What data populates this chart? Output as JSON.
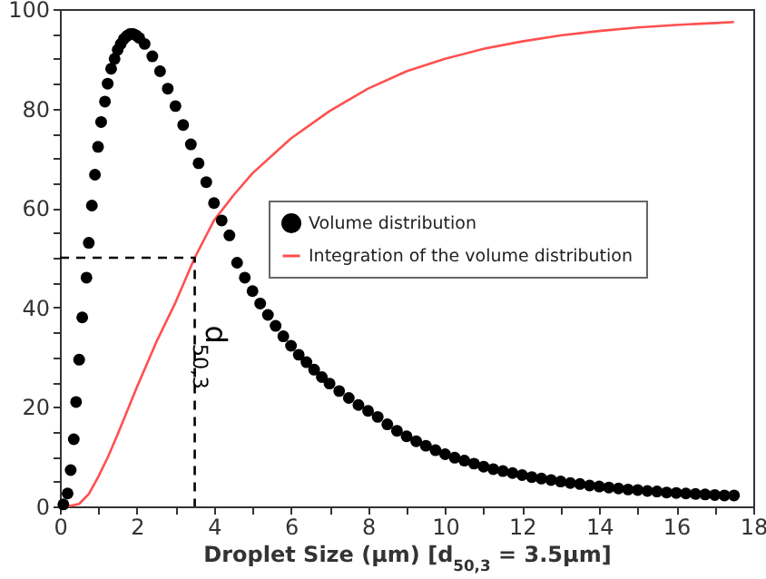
{
  "chart_data": {
    "type": "scatter",
    "xlabel": "Droplet Size (µm) [d$_{50,3}$ = 3.5µm]",
    "xlim": [
      0,
      18
    ],
    "ylim": [
      0,
      100
    ],
    "xticks": [
      0,
      {
        "value": 1,
        "label": null
      },
      2,
      {
        "value": 3,
        "label": null
      },
      4,
      {
        "value": 5,
        "label": null
      },
      6,
      {
        "value": 7,
        "label": null
      },
      8,
      {
        "value": 9,
        "label": null
      },
      10,
      {
        "value": 11,
        "label": null
      },
      12,
      {
        "value": 13,
        "label": null
      },
      14,
      {
        "value": 15,
        "label": null
      },
      16,
      {
        "value": 17,
        "label": null
      },
      18
    ],
    "yticks": [
      0,
      {
        "value": 5,
        "label": null
      },
      {
        "value": 10,
        "label": null
      },
      {
        "value": 15,
        "label": null
      },
      20,
      {
        "value": 25,
        "label": null
      },
      {
        "value": 30,
        "label": null
      },
      {
        "value": 35,
        "label": null
      },
      40,
      {
        "value": 45,
        "label": null
      },
      {
        "value": 50,
        "label": null
      },
      {
        "value": 55,
        "label": null
      },
      60,
      {
        "value": 65,
        "label": null
      },
      {
        "value": 70,
        "label": null
      },
      {
        "value": 75,
        "label": null
      },
      80,
      {
        "value": 85,
        "label": null
      },
      {
        "value": 90,
        "label": null
      },
      {
        "value": 95,
        "label": null
      },
      100
    ],
    "legend": "right",
    "grid": false,
    "series": [
      {
        "name": "Volume distribution",
        "marker": "circle",
        "color": "#000000",
        "x": [
          0.09,
          0.2,
          0.28,
          0.36,
          0.42,
          0.5,
          0.58,
          0.69,
          0.75,
          0.83,
          0.91,
          0.99,
          1.07,
          1.17,
          1.24,
          1.33,
          1.42,
          1.5,
          1.58,
          1.66,
          1.74,
          1.82,
          1.9,
          1.98,
          2.06,
          2.2,
          2.4,
          2.6,
          2.8,
          3.0,
          3.2,
          3.4,
          3.6,
          3.8,
          4.0,
          4.2,
          4.4,
          4.6,
          4.8,
          5.0,
          5.2,
          5.4,
          5.6,
          5.8,
          6.0,
          6.2,
          6.4,
          6.6,
          6.8,
          7.0,
          7.25,
          7.5,
          7.75,
          8.0,
          8.25,
          8.5,
          8.75,
          9.0,
          9.25,
          9.5,
          9.75,
          10.0,
          10.25,
          10.5,
          10.75,
          11.0,
          11.25,
          11.5,
          11.75,
          12.0,
          12.25,
          12.5,
          12.75,
          13.0,
          13.25,
          13.5,
          13.75,
          14.0,
          14.25,
          14.5,
          14.75,
          15.0,
          15.25,
          15.5,
          15.75,
          16.0,
          16.25,
          16.5,
          16.75,
          17.0,
          17.25,
          17.5
        ],
        "values": [
          0.4,
          2.6,
          7.3,
          13.5,
          21,
          29.5,
          38,
          46,
          53,
          60.5,
          66.7,
          72.3,
          77.3,
          81.4,
          85,
          88,
          90,
          91.8,
          93,
          94,
          94.6,
          95,
          95,
          94.7,
          94.2,
          93,
          90.5,
          87.5,
          84,
          80.5,
          76.7,
          72.8,
          69,
          65.2,
          61,
          57.5,
          54.5,
          49,
          46,
          43.3,
          40.8,
          38.5,
          36.3,
          34.2,
          32.3,
          30.5,
          29,
          27.5,
          26,
          24.7,
          23.2,
          21.8,
          20.4,
          19.2,
          18,
          16.5,
          15.2,
          14.1,
          13.1,
          12.2,
          11.3,
          10.5,
          9.8,
          9.2,
          8.6,
          8,
          7.5,
          7.1,
          6.7,
          6.3,
          5.9,
          5.6,
          5.3,
          5,
          4.7,
          4.5,
          4.2,
          4,
          3.8,
          3.6,
          3.4,
          3.3,
          3.1,
          3,
          2.8,
          2.7,
          2.6,
          2.5,
          2.4,
          2.3,
          2.2,
          2.2
        ]
      },
      {
        "name": "Integration of the volume distribution",
        "type": "line",
        "color": "#ff5050",
        "x": [
          0.2,
          0.5,
          0.75,
          1,
          1.25,
          1.5,
          2,
          2.5,
          3,
          3.5,
          4,
          4.5,
          5,
          6,
          7,
          8,
          9,
          10,
          11,
          12,
          13,
          14,
          15,
          16,
          17,
          17.5
        ],
        "values": [
          0,
          0.5,
          2.5,
          6,
          10,
          14.5,
          24,
          33,
          41,
          50,
          57.5,
          62.5,
          67,
          74,
          79.5,
          84,
          87.5,
          90,
          92,
          93.5,
          94.7,
          95.6,
          96.3,
          96.8,
          97.2,
          97.4
        ]
      },
      {
        "type": "line",
        "color": "#000000",
        "line_style": "dashed",
        "x": [
          0,
          3.5,
          3.5
        ],
        "values": [
          50,
          50,
          0
        ]
      }
    ],
    "annotations": [
      {
        "text": "d$_{50,3}$",
        "x": 3.5,
        "y": 30
      }
    ]
  }
}
